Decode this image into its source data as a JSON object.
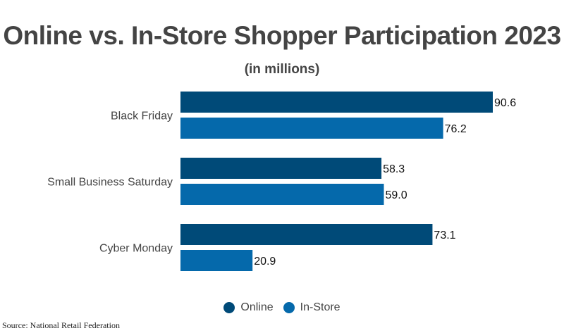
{
  "chart_data": {
    "type": "bar",
    "orientation": "horizontal",
    "title": "Online vs. In-Store Shopper Participation 2023",
    "subtitle": "(in millions)",
    "categories": [
      "Black Friday",
      "Small Business Saturday",
      "Cyber Monday"
    ],
    "series": [
      {
        "name": "Online",
        "color": "#004a78",
        "values": [
          90.6,
          58.3,
          73.1
        ]
      },
      {
        "name": "In-Store",
        "color": "#0569ab",
        "values": [
          76.2,
          59.0,
          20.9
        ]
      }
    ],
    "xlim": [
      0,
      100
    ],
    "grid": false,
    "legend": "bottom",
    "source": "Source: National Retail Federation"
  }
}
